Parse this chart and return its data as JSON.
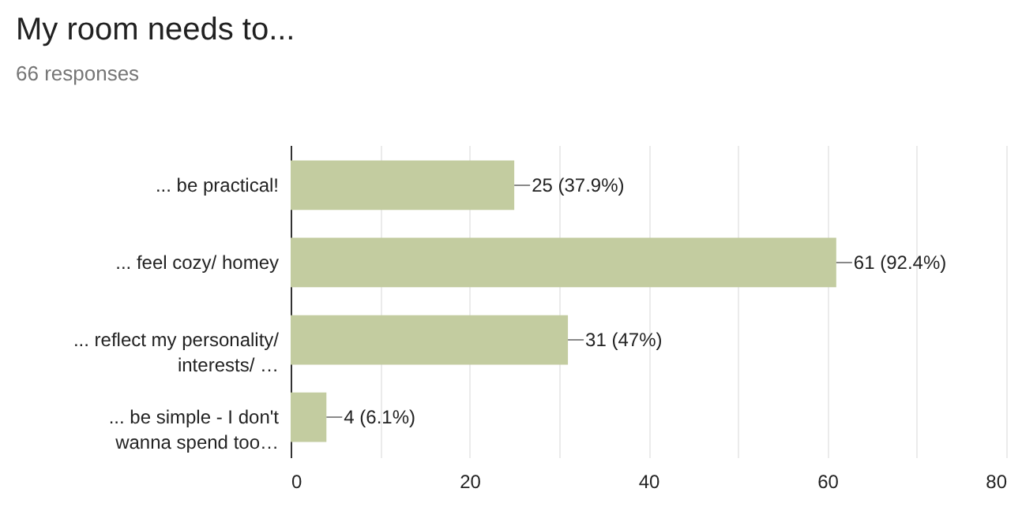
{
  "chart_data": {
    "type": "bar",
    "orientation": "horizontal",
    "title": "My room needs to...",
    "subtitle": "66 responses",
    "categories": [
      "... be practical!",
      "... feel cozy/ homey",
      "... reflect my personality/ interests/ …",
      "... be simple - I don't wanna spend too…"
    ],
    "values": [
      25,
      61,
      31,
      4
    ],
    "value_labels": [
      "25 (37.9%)",
      "61 (92.4%)",
      "31 (47%)",
      "4 (6.1%)"
    ],
    "color": "#c3cca0",
    "xlim": [
      0,
      80
    ],
    "xticks": [
      0,
      {
        "value": 10,
        "label": null
      },
      20,
      {
        "value": 30,
        "label": null
      },
      40,
      {
        "value": 50,
        "label": null
      },
      60,
      {
        "value": 70,
        "label": null
      },
      80
    ],
    "grid": "x"
  }
}
